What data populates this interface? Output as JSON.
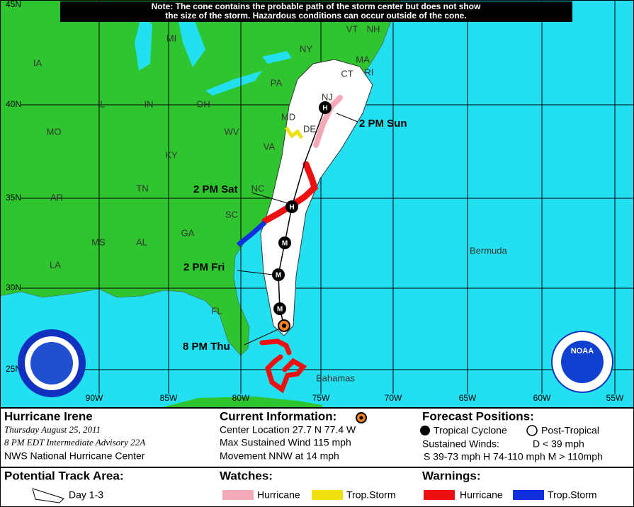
{
  "note": {
    "line1": "Note: The cone contains the probable path of the storm center but does not show",
    "line2": "the size of the storm. Hazardous conditions can occur outside of the cone."
  },
  "map": {
    "states": [
      "IA",
      "MI",
      "NY",
      "VT",
      "NH",
      "MA",
      "CT",
      "RI",
      "PA",
      "NJ",
      "MD",
      "DE",
      "OH",
      "IN",
      "IL",
      "MO",
      "WV",
      "VA",
      "KY",
      "TN",
      "NC",
      "AR",
      "SC",
      "GA",
      "AL",
      "MS",
      "LA",
      "FL"
    ],
    "places": [
      "Bermuda",
      "Bahamas"
    ],
    "longitudes": [
      "90W",
      "85W",
      "80W",
      "75W",
      "70W",
      "65W",
      "60W",
      "55W"
    ],
    "latitudes": [
      "45N",
      "40N",
      "35N",
      "30N",
      "25N"
    ],
    "times": [
      "2 PM Sun",
      "2 PM Sat",
      "2 PM Fri",
      "8 PM Thu"
    ],
    "markers": [
      "H",
      "H",
      "M",
      "M",
      "M"
    ],
    "logos": [
      "NOAA"
    ]
  },
  "info": {
    "storm": "Hurricane Irene",
    "date": "Thursday  August 25, 2011",
    "advisory": "8 PM EDT Intermediate Advisory 22A",
    "center": "NWS National Hurricane Center",
    "current_title": "Current Information:",
    "location": "Center Location 27.7 N  77.4 W",
    "wind": "Max Sustained Wind  115 mph",
    "movement": "Movement NNW at  14 mph",
    "forecast_title": "Forecast Positions:",
    "tropical": "Tropical Cyclone",
    "post_tropical": "Post-Tropical",
    "winds_label": "Sustained Winds:",
    "winds_d": "D  < 39 mph",
    "winds_scale": "S  39-73 mph  H  74-110 mph  M  > 110mph",
    "track_title": "Potential Track Area:",
    "track_day": "Day 1-3",
    "watches_title": "Watches:",
    "watch_hurricane": "Hurricane",
    "watch_storm": "Trop.Storm",
    "warnings_title": "Warnings:",
    "warn_hurricane": "Hurricane",
    "warn_storm": "Trop.Storm"
  }
}
